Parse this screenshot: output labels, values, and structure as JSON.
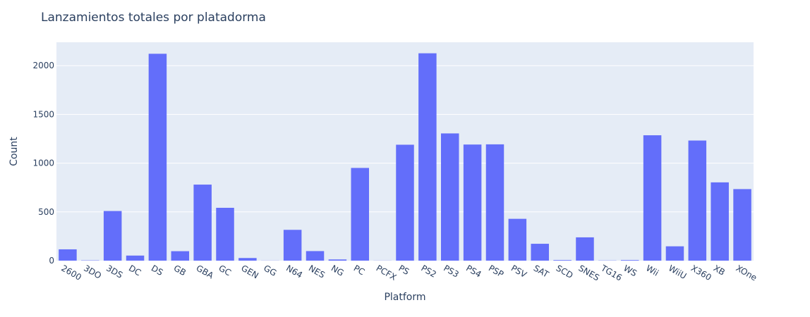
{
  "chart_data": {
    "type": "bar",
    "title": "Lanzamientos totales por platadorma",
    "xlabel": "Platform",
    "ylabel": "Count",
    "categories": [
      "2600",
      "3DO",
      "3DS",
      "DC",
      "DS",
      "GB",
      "GBA",
      "GC",
      "GEN",
      "GG",
      "N64",
      "NES",
      "NG",
      "PC",
      "PCFX",
      "PS",
      "PS2",
      "PS3",
      "PS4",
      "PSP",
      "PSV",
      "SAT",
      "SCD",
      "SNES",
      "TG16",
      "WS",
      "Wii",
      "WiiU",
      "X360",
      "XB",
      "XOne"
    ],
    "values": [
      116,
      3,
      509,
      52,
      2122,
      97,
      780,
      542,
      27,
      1,
      316,
      98,
      12,
      951,
      1,
      1189,
      2127,
      1305,
      1191,
      1193,
      429,
      173,
      6,
      239,
      2,
      6,
      1286,
      147,
      1232,
      803,
      734
    ],
    "ylim": [
      0,
      2240
    ],
    "yticks": [
      0,
      500,
      1000,
      1500,
      2000
    ],
    "grid": true,
    "colors": {
      "bar": "#636efa",
      "plot_bg": "#e5ecf6",
      "grid": "#ffffff",
      "text": "#2a3f5f"
    }
  }
}
